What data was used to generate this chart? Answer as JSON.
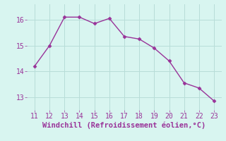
{
  "x": [
    11,
    12,
    13,
    14,
    15,
    16,
    17,
    18,
    19,
    20,
    21,
    22,
    23
  ],
  "y": [
    14.2,
    15.0,
    16.1,
    16.1,
    15.85,
    16.05,
    15.35,
    15.25,
    14.9,
    14.4,
    13.55,
    13.35,
    12.85
  ],
  "line_color": "#993399",
  "marker_color": "#993399",
  "bg_color": "#d8f5f0",
  "grid_color": "#b8ddd8",
  "xlabel": "Windchill (Refroidissement éolien,°C)",
  "xlabel_color": "#993399",
  "tick_color": "#993399",
  "ylim": [
    12.5,
    16.6
  ],
  "xlim": [
    10.5,
    23.5
  ],
  "yticks": [
    13,
    14,
    15,
    16
  ],
  "xticks": [
    11,
    12,
    13,
    14,
    15,
    16,
    17,
    18,
    19,
    20,
    21,
    22,
    23
  ],
  "linewidth": 1.0,
  "markersize": 2.5,
  "xlabel_fontsize": 7.5,
  "tick_fontsize": 7.0
}
